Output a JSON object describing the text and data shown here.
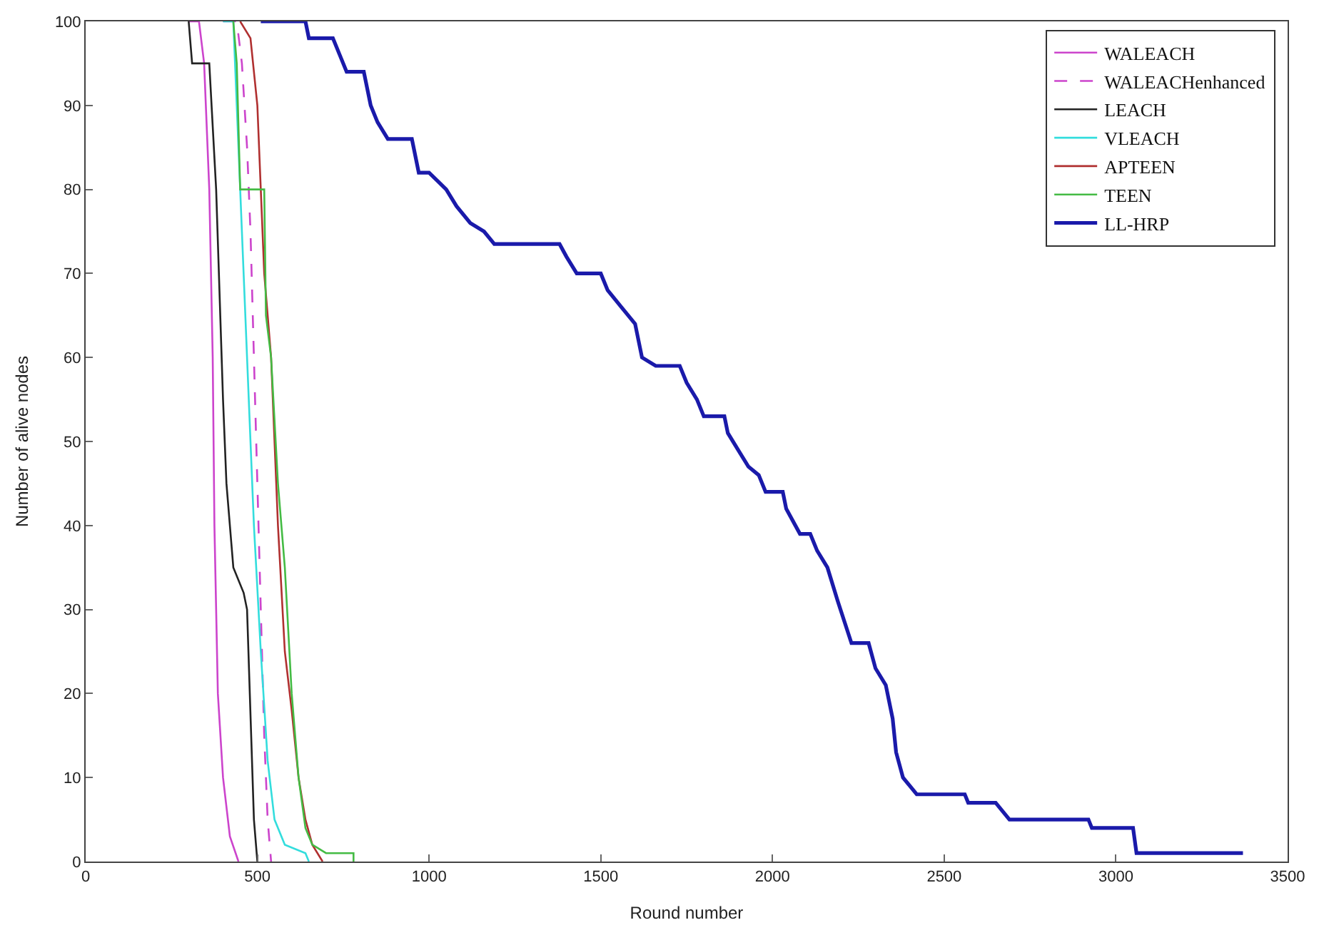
{
  "chart_data": {
    "type": "line",
    "xlabel": "Round number",
    "ylabel": "Number of alive nodes",
    "xlim": [
      0,
      3500
    ],
    "xticks": [
      0,
      500,
      1000,
      1500,
      2000,
      2500,
      3000,
      3500
    ],
    "ylim": [
      0,
      100
    ],
    "yticks": [
      0,
      10,
      20,
      30,
      40,
      50,
      60,
      70,
      80,
      90,
      100
    ],
    "legend": "top right",
    "marker": "none",
    "series": [
      {
        "name": "WALEACH",
        "color": "#cc44cc",
        "line_style": "solid",
        "x": [
          300,
          330,
          345,
          360,
          370,
          375,
          385,
          400,
          420,
          445
        ],
        "values": [
          100,
          100,
          95,
          80,
          60,
          40,
          20,
          10,
          3,
          0
        ]
      },
      {
        "name": "WALEACHenhanced",
        "color": "#cc44cc",
        "line_style": "dashed",
        "x": [
          400,
          440,
          455,
          470,
          480,
          490,
          500,
          510,
          520,
          530,
          540
        ],
        "values": [
          100,
          100,
          95,
          85,
          75,
          60,
          45,
          30,
          15,
          5,
          0
        ]
      },
      {
        "name": "LEACH",
        "color": "#222222",
        "line_style": "solid",
        "x": [
          300,
          310,
          360,
          380,
          400,
          410,
          430,
          460,
          470,
          490,
          500
        ],
        "values": [
          100,
          95,
          95,
          80,
          55,
          45,
          35,
          32,
          30,
          5,
          0
        ]
      },
      {
        "name": "VLEACH",
        "color": "#33dddd",
        "line_style": "solid",
        "x": [
          400,
          430,
          440,
          460,
          475,
          490,
          510,
          530,
          550,
          580,
          640,
          650
        ],
        "values": [
          100,
          100,
          90,
          70,
          55,
          40,
          25,
          12,
          5,
          2,
          1,
          0
        ]
      },
      {
        "name": "APTEEN",
        "color": "#b03030",
        "line_style": "solid",
        "x": [
          450,
          480,
          500,
          510,
          520,
          540,
          560,
          580,
          600,
          620,
          640,
          660,
          690
        ],
        "values": [
          100,
          98,
          90,
          80,
          70,
          60,
          40,
          25,
          18,
          10,
          5,
          2,
          0
        ]
      },
      {
        "name": "TEEN",
        "color": "#44bb44",
        "line_style": "solid",
        "x": [
          430,
          440,
          450,
          520,
          525,
          540,
          560,
          580,
          600,
          620,
          640,
          660,
          700,
          780,
          780
        ],
        "values": [
          100,
          95,
          80,
          80,
          65,
          60,
          45,
          35,
          20,
          10,
          4,
          2,
          1,
          1,
          0
        ]
      },
      {
        "name": "LL-HRP",
        "color": "#1a1aaa",
        "line_style": "solid",
        "x": [
          510,
          640,
          650,
          720,
          740,
          760,
          810,
          830,
          850,
          880,
          950,
          970,
          1000,
          1050,
          1080,
          1120,
          1160,
          1190,
          1380,
          1400,
          1430,
          1500,
          1520,
          1560,
          1600,
          1620,
          1660,
          1730,
          1750,
          1780,
          1800,
          1860,
          1870,
          1900,
          1930,
          1960,
          1980,
          2030,
          2040,
          2080,
          2110,
          2130,
          2160,
          2190,
          2230,
          2280,
          2300,
          2330,
          2350,
          2360,
          2380,
          2420,
          2560,
          2570,
          2650,
          2690,
          2920,
          2930,
          3050,
          3060,
          3370
        ],
        "values": [
          100,
          100,
          98,
          98,
          96,
          94,
          94,
          90,
          88,
          86,
          86,
          82,
          82,
          80,
          78,
          76,
          75,
          73.5,
          73.5,
          72,
          70,
          70,
          68,
          66,
          64,
          60,
          59,
          59,
          57,
          55,
          53,
          53,
          51,
          49,
          47,
          46,
          44,
          44,
          42,
          39,
          39,
          37,
          35,
          31,
          26,
          26,
          23,
          21,
          17,
          13,
          10,
          8,
          8,
          7,
          7,
          5,
          5,
          4,
          4,
          1,
          1
        ]
      }
    ]
  }
}
